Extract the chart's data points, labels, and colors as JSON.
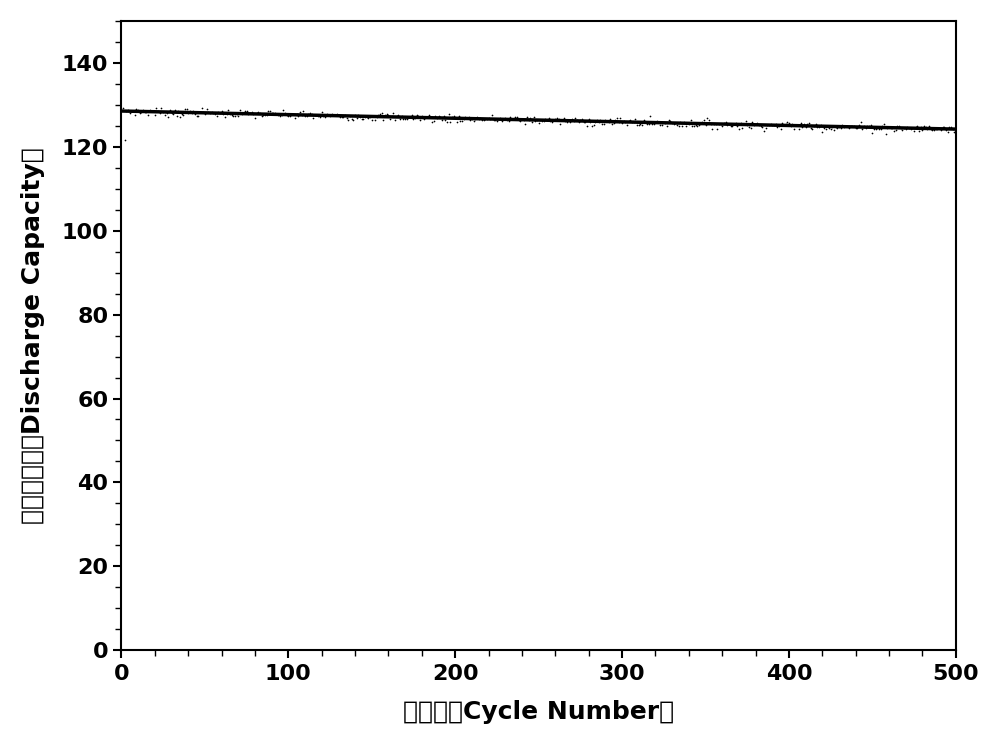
{
  "title": "",
  "xlabel": "循环数（Cycle Number）",
  "ylabel": "放电比容量（Discharge Capacity）",
  "xlim": [
    0,
    500
  ],
  "ylim": [
    0,
    150
  ],
  "xticks": [
    0,
    100,
    200,
    300,
    400,
    500
  ],
  "yticks": [
    0,
    20,
    40,
    60,
    80,
    100,
    120,
    140
  ],
  "line_color": "#000000",
  "scatter_color": "#000000",
  "background_color": "#ffffff",
  "start_capacity": 128.5,
  "end_capacity": 124.2,
  "low_point_x": 2,
  "low_point_y": 121.5,
  "n_cycles": 500,
  "noise_amplitude": 0.5,
  "marker_size": 1.5,
  "line_width": 2.5,
  "xlabel_fontsize": 18,
  "ylabel_fontsize": 18,
  "tick_fontsize": 16,
  "figsize": [
    10.0,
    7.45
  ],
  "dpi": 100
}
